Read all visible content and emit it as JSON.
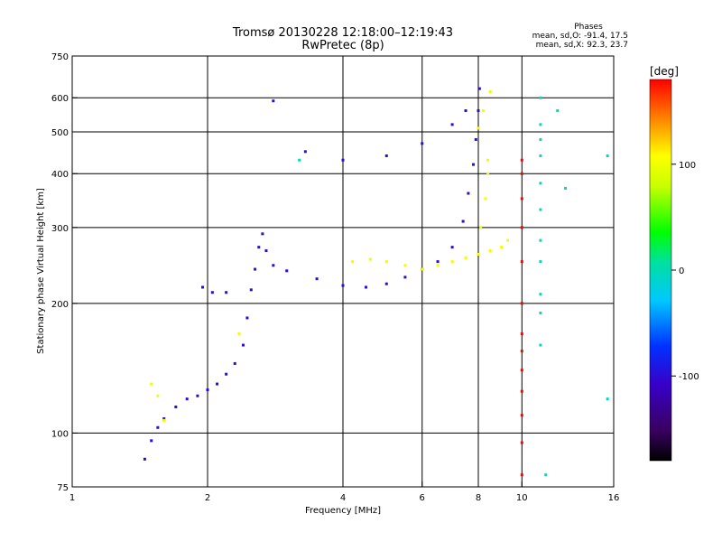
{
  "chart_data": {
    "type": "scatter",
    "title": "Tromsø 20130228 12:18:00–12:19:43",
    "subtitle": "RwPretec (8p)",
    "xlabel": "Frequency [MHz]",
    "ylabel": "Stationary phase Virtual Height [km]",
    "x_scale": "log",
    "y_scale": "log",
    "xlim": [
      1,
      16
    ],
    "ylim": [
      75,
      750
    ],
    "x_ticks": [
      1,
      2,
      4,
      6,
      8,
      10,
      16
    ],
    "y_ticks": [
      75,
      100,
      200,
      300,
      400,
      500,
      600,
      750
    ],
    "x_gridlines": [
      2,
      4,
      6,
      8,
      10
    ],
    "y_gridlines": [
      100,
      200,
      300,
      400,
      500,
      600
    ],
    "grid": true,
    "stats": {
      "header": "Phases",
      "line_o": "mean, sd,O: -91.4, 17.5",
      "line_x": "mean, sd,X:  92.3, 23.7"
    },
    "colorbar": {
      "label": "[deg]",
      "ticks": [
        "100",
        "0",
        "-100"
      ],
      "tick_values": [
        100,
        0,
        -100
      ],
      "range": [
        -180,
        180
      ],
      "palette": "rainbow (black → purple → blue → cyan → green → yellow → orange → red)"
    },
    "series": [
      {
        "mode": "O",
        "color_value": -100,
        "points": [
          [
            1.45,
            87
          ],
          [
            1.5,
            96
          ],
          [
            1.55,
            103
          ],
          [
            1.6,
            108
          ],
          [
            1.7,
            115
          ],
          [
            1.8,
            120
          ],
          [
            1.9,
            122
          ],
          [
            2.0,
            126
          ],
          [
            2.1,
            130
          ],
          [
            2.2,
            137
          ],
          [
            2.3,
            145
          ],
          [
            2.4,
            160
          ],
          [
            2.45,
            185
          ],
          [
            2.5,
            215
          ],
          [
            2.55,
            240
          ],
          [
            2.6,
            270
          ],
          [
            2.65,
            290
          ],
          [
            2.7,
            265
          ],
          [
            2.8,
            245
          ],
          [
            3.0,
            238
          ],
          [
            3.5,
            228
          ],
          [
            4.0,
            220
          ],
          [
            4.5,
            218
          ],
          [
            5.0,
            222
          ],
          [
            5.5,
            230
          ],
          [
            6.0,
            240
          ],
          [
            6.5,
            250
          ],
          [
            7.0,
            270
          ],
          [
            7.4,
            310
          ],
          [
            7.6,
            360
          ],
          [
            7.8,
            420
          ],
          [
            7.9,
            480
          ],
          [
            8.0,
            560
          ],
          [
            8.05,
            630
          ],
          [
            1.95,
            218
          ],
          [
            2.05,
            212
          ],
          [
            2.2,
            212
          ],
          [
            3.3,
            450
          ],
          [
            4.0,
            430
          ],
          [
            5.0,
            440
          ],
          [
            6.0,
            470
          ],
          [
            7.0,
            520
          ],
          [
            7.5,
            560
          ],
          [
            2.8,
            590
          ]
        ]
      },
      {
        "mode": "X",
        "color_value": 100,
        "points": [
          [
            4.2,
            250
          ],
          [
            4.6,
            253
          ],
          [
            5.0,
            250
          ],
          [
            5.5,
            245
          ],
          [
            6.0,
            240
          ],
          [
            6.5,
            245
          ],
          [
            7.0,
            250
          ],
          [
            7.5,
            255
          ],
          [
            8.0,
            260
          ],
          [
            8.5,
            265
          ],
          [
            9.0,
            270
          ],
          [
            9.3,
            280
          ],
          [
            8.1,
            300
          ],
          [
            8.3,
            350
          ],
          [
            8.4,
            400
          ],
          [
            8.4,
            430
          ],
          [
            8.0,
            510
          ],
          [
            8.2,
            560
          ],
          [
            8.5,
            620
          ],
          [
            1.5,
            130
          ],
          [
            1.55,
            122
          ],
          [
            1.6,
            107
          ],
          [
            2.35,
            170
          ]
        ]
      },
      {
        "mode": "vertical-streak",
        "color_value": 180,
        "points": [
          [
            10.0,
            80
          ],
          [
            10.0,
            95
          ],
          [
            10.0,
            110
          ],
          [
            10.0,
            125
          ],
          [
            10.0,
            140
          ],
          [
            10.0,
            155
          ],
          [
            10.0,
            170
          ],
          [
            10.0,
            200
          ],
          [
            10.0,
            250
          ],
          [
            10.0,
            300
          ],
          [
            10.0,
            350
          ],
          [
            10.0,
            400
          ],
          [
            10.0,
            430
          ]
        ]
      },
      {
        "mode": "scattered",
        "color_value": 0,
        "points": [
          [
            11.0,
            160
          ],
          [
            11.0,
            190
          ],
          [
            11.0,
            210
          ],
          [
            11.0,
            250
          ],
          [
            11.0,
            280
          ],
          [
            11.0,
            330
          ],
          [
            11.0,
            380
          ],
          [
            11.0,
            440
          ],
          [
            11.0,
            480
          ],
          [
            11.0,
            520
          ],
          [
            11.0,
            600
          ],
          [
            11.3,
            80
          ],
          [
            12.0,
            560
          ],
          [
            12.5,
            370
          ],
          [
            15.5,
            120
          ],
          [
            15.5,
            440
          ],
          [
            3.2,
            430
          ]
        ]
      }
    ]
  }
}
